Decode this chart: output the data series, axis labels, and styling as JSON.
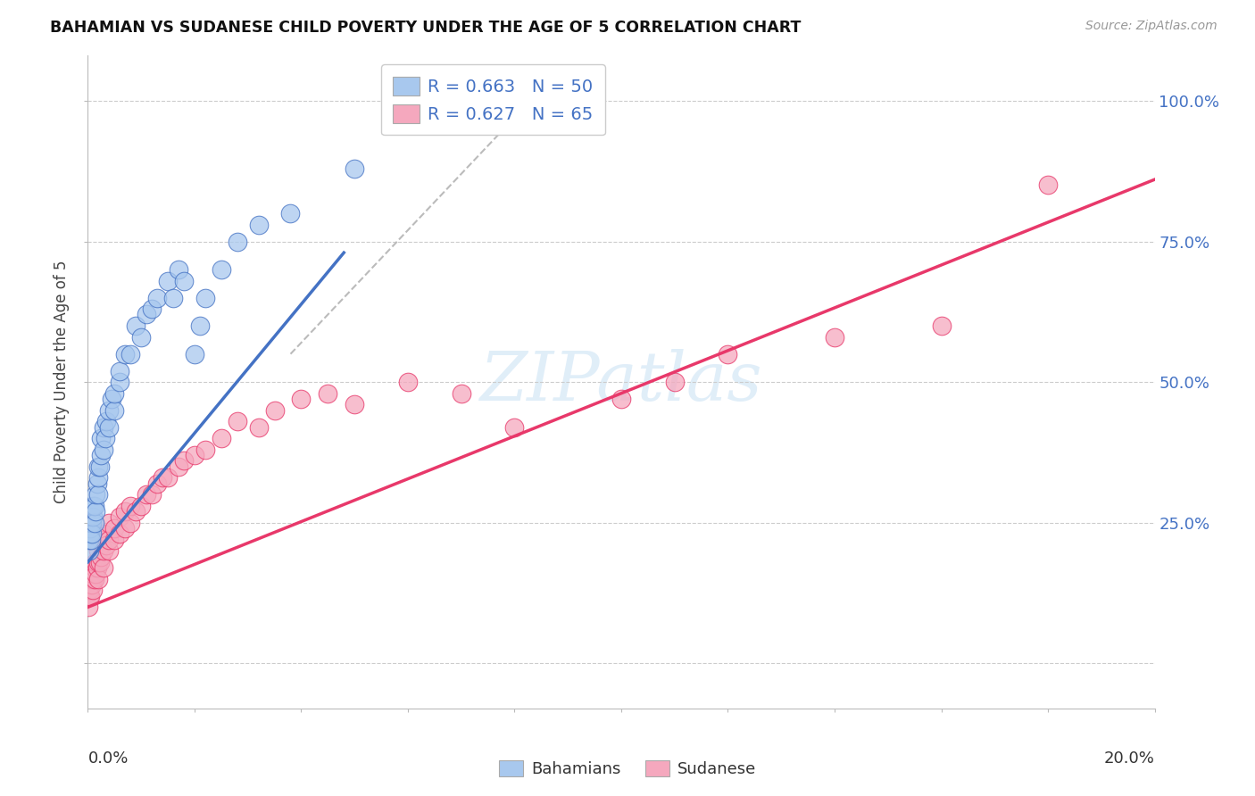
{
  "title": "BAHAMIAN VS SUDANESE CHILD POVERTY UNDER THE AGE OF 5 CORRELATION CHART",
  "source": "Source: ZipAtlas.com",
  "ylabel": "Child Poverty Under the Age of 5",
  "right_yticklabels": [
    "",
    "25.0%",
    "50.0%",
    "75.0%",
    "100.0%"
  ],
  "legend_bahamian": {
    "R": 0.663,
    "N": 50
  },
  "legend_sudanese": {
    "R": 0.627,
    "N": 65
  },
  "legend_labels": [
    "Bahamians",
    "Sudanese"
  ],
  "color_blue": "#A8C8EE",
  "color_pink": "#F5A8BE",
  "color_trend_blue": "#4472C4",
  "color_trend_pink": "#E8386A",
  "watermark": "ZIPatlas",
  "bahamian_x": [
    0.0002,
    0.0003,
    0.0004,
    0.0005,
    0.0006,
    0.0007,
    0.0008,
    0.001,
    0.001,
    0.0012,
    0.0013,
    0.0015,
    0.0015,
    0.0018,
    0.002,
    0.002,
    0.002,
    0.0022,
    0.0025,
    0.0025,
    0.003,
    0.003,
    0.0032,
    0.0035,
    0.004,
    0.004,
    0.0045,
    0.005,
    0.005,
    0.006,
    0.006,
    0.007,
    0.008,
    0.009,
    0.01,
    0.011,
    0.012,
    0.013,
    0.015,
    0.016,
    0.017,
    0.018,
    0.02,
    0.021,
    0.022,
    0.025,
    0.028,
    0.032,
    0.038,
    0.05
  ],
  "bahamian_y": [
    0.2,
    0.22,
    0.23,
    0.24,
    0.22,
    0.25,
    0.23,
    0.26,
    0.28,
    0.25,
    0.28,
    0.27,
    0.3,
    0.32,
    0.3,
    0.33,
    0.35,
    0.35,
    0.37,
    0.4,
    0.38,
    0.42,
    0.4,
    0.43,
    0.42,
    0.45,
    0.47,
    0.45,
    0.48,
    0.5,
    0.52,
    0.55,
    0.55,
    0.6,
    0.58,
    0.62,
    0.63,
    0.65,
    0.68,
    0.65,
    0.7,
    0.68,
    0.55,
    0.6,
    0.65,
    0.7,
    0.75,
    0.78,
    0.8,
    0.88
  ],
  "sudanese_x": [
    0.0001,
    0.0002,
    0.0003,
    0.0004,
    0.0005,
    0.0006,
    0.0007,
    0.0008,
    0.0009,
    0.001,
    0.001,
    0.001,
    0.0012,
    0.0013,
    0.0015,
    0.0015,
    0.0017,
    0.002,
    0.002,
    0.002,
    0.0022,
    0.0025,
    0.0025,
    0.003,
    0.003,
    0.003,
    0.0035,
    0.004,
    0.004,
    0.004,
    0.005,
    0.005,
    0.006,
    0.006,
    0.007,
    0.007,
    0.008,
    0.008,
    0.009,
    0.01,
    0.011,
    0.012,
    0.013,
    0.014,
    0.015,
    0.017,
    0.018,
    0.02,
    0.022,
    0.025,
    0.028,
    0.032,
    0.035,
    0.04,
    0.045,
    0.05,
    0.06,
    0.07,
    0.08,
    0.1,
    0.11,
    0.12,
    0.14,
    0.16,
    0.18
  ],
  "sudanese_y": [
    0.1,
    0.12,
    0.13,
    0.14,
    0.12,
    0.15,
    0.14,
    0.16,
    0.15,
    0.13,
    0.16,
    0.17,
    0.15,
    0.17,
    0.16,
    0.18,
    0.17,
    0.15,
    0.18,
    0.2,
    0.18,
    0.19,
    0.22,
    0.17,
    0.2,
    0.23,
    0.21,
    0.2,
    0.22,
    0.25,
    0.22,
    0.24,
    0.23,
    0.26,
    0.24,
    0.27,
    0.25,
    0.28,
    0.27,
    0.28,
    0.3,
    0.3,
    0.32,
    0.33,
    0.33,
    0.35,
    0.36,
    0.37,
    0.38,
    0.4,
    0.43,
    0.42,
    0.45,
    0.47,
    0.48,
    0.46,
    0.5,
    0.48,
    0.42,
    0.47,
    0.5,
    0.55,
    0.58,
    0.6,
    0.85
  ],
  "blue_trend_x0": 0.0,
  "blue_trend_y0": 0.18,
  "blue_trend_x1": 0.048,
  "blue_trend_y1": 0.73,
  "pink_trend_x0": 0.0,
  "pink_trend_y0": 0.1,
  "pink_trend_x1": 0.2,
  "pink_trend_y1": 0.86,
  "ref_line_x0": 0.038,
  "ref_line_y0": 0.55,
  "ref_line_x1": 0.085,
  "ref_line_y1": 1.02,
  "xmin": 0.0,
  "xmax": 0.2,
  "ymin": -0.08,
  "ymax": 1.08
}
